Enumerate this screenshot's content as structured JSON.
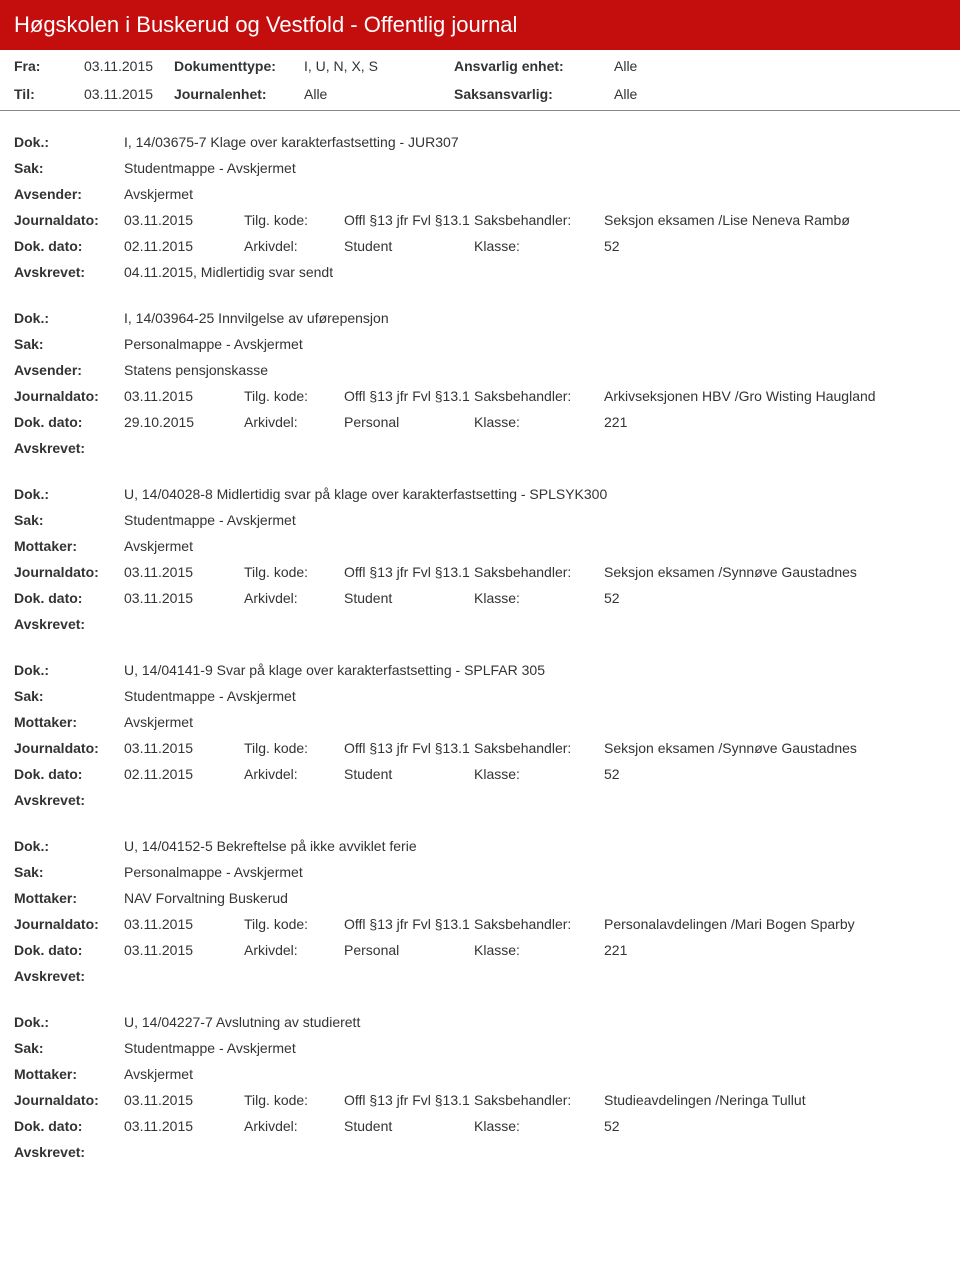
{
  "header": {
    "title": "Høgskolen i Buskerud og Vestfold - Offentlig journal"
  },
  "filters": {
    "fra_label": "Fra:",
    "fra_value": "03.11.2015",
    "til_label": "Til:",
    "til_value": "03.11.2015",
    "doktype_label": "Dokumenttype:",
    "doktype_value": "I, U, N, X, S",
    "journalenhet_label": "Journalenhet:",
    "journalenhet_value": "Alle",
    "ansvarlig_label": "Ansvarlig enhet:",
    "ansvarlig_value": "Alle",
    "saksansvarlig_label": "Saksansvarlig:",
    "saksansvarlig_value": "Alle"
  },
  "labels": {
    "dok": "Dok.:",
    "sak": "Sak:",
    "avsender": "Avsender:",
    "mottaker": "Mottaker:",
    "journaldato": "Journaldato:",
    "tilgkode": "Tilg. kode:",
    "saksbehandler": "Saksbehandler:",
    "dokdato": "Dok. dato:",
    "arkivdel": "Arkivdel:",
    "klasse": "Klasse:",
    "avskrevet": "Avskrevet:"
  },
  "entries": [
    {
      "dok": "I, 14/03675-7 Klage over karakterfastsetting - JUR307",
      "sak": "Studentmappe - Avskjermet",
      "party_label": "Avsender:",
      "party": "Avskjermet",
      "journaldato": "03.11.2015",
      "tilgkode": "Offl §13 jfr Fvl §13.1",
      "saksbehandler": "Seksjon eksamen /Lise Neneva Rambø",
      "dokdato": "02.11.2015",
      "arkivdel": "Student",
      "klasse": "52",
      "avskrevet": "04.11.2015, Midlertidig svar sendt"
    },
    {
      "dok": "I, 14/03964-25 Innvilgelse av uførepensjon",
      "sak": "Personalmappe - Avskjermet",
      "party_label": "Avsender:",
      "party": "Statens pensjonskasse",
      "journaldato": "03.11.2015",
      "tilgkode": "Offl §13 jfr Fvl §13.1",
      "saksbehandler": "Arkivseksjonen HBV /Gro Wisting Haugland",
      "dokdato": "29.10.2015",
      "arkivdel": "Personal",
      "klasse": "221",
      "avskrevet": ""
    },
    {
      "dok": "U, 14/04028-8 Midlertidig svar på klage over karakterfastsetting - SPLSYK300",
      "sak": "Studentmappe - Avskjermet",
      "party_label": "Mottaker:",
      "party": "Avskjermet",
      "journaldato": "03.11.2015",
      "tilgkode": "Offl §13 jfr Fvl §13.1",
      "saksbehandler": "Seksjon eksamen /Synnøve Gaustadnes",
      "dokdato": "03.11.2015",
      "arkivdel": "Student",
      "klasse": "52",
      "avskrevet": ""
    },
    {
      "dok": "U, 14/04141-9 Svar på klage over karakterfastsetting - SPLFAR 305",
      "sak": "Studentmappe - Avskjermet",
      "party_label": "Mottaker:",
      "party": "Avskjermet",
      "journaldato": "03.11.2015",
      "tilgkode": "Offl §13 jfr Fvl §13.1",
      "saksbehandler": "Seksjon eksamen /Synnøve Gaustadnes",
      "dokdato": "02.11.2015",
      "arkivdel": "Student",
      "klasse": "52",
      "avskrevet": ""
    },
    {
      "dok": "U, 14/04152-5 Bekreftelse på ikke avviklet ferie",
      "sak": "Personalmappe - Avskjermet",
      "party_label": "Mottaker:",
      "party": "NAV Forvaltning Buskerud",
      "journaldato": "03.11.2015",
      "tilgkode": "Offl §13 jfr Fvl §13.1",
      "saksbehandler": "Personalavdelingen /Mari Bogen Sparby",
      "dokdato": "03.11.2015",
      "arkivdel": "Personal",
      "klasse": "221",
      "avskrevet": ""
    },
    {
      "dok": "U, 14/04227-7 Avslutning av studierett",
      "sak": "Studentmappe - Avskjermet",
      "party_label": "Mottaker:",
      "party": "Avskjermet",
      "journaldato": "03.11.2015",
      "tilgkode": "Offl §13 jfr Fvl §13.1",
      "saksbehandler": "Studieavdelingen /Neringa Tullut",
      "dokdato": "03.11.2015",
      "arkivdel": "Student",
      "klasse": "52",
      "avskrevet": ""
    }
  ]
}
